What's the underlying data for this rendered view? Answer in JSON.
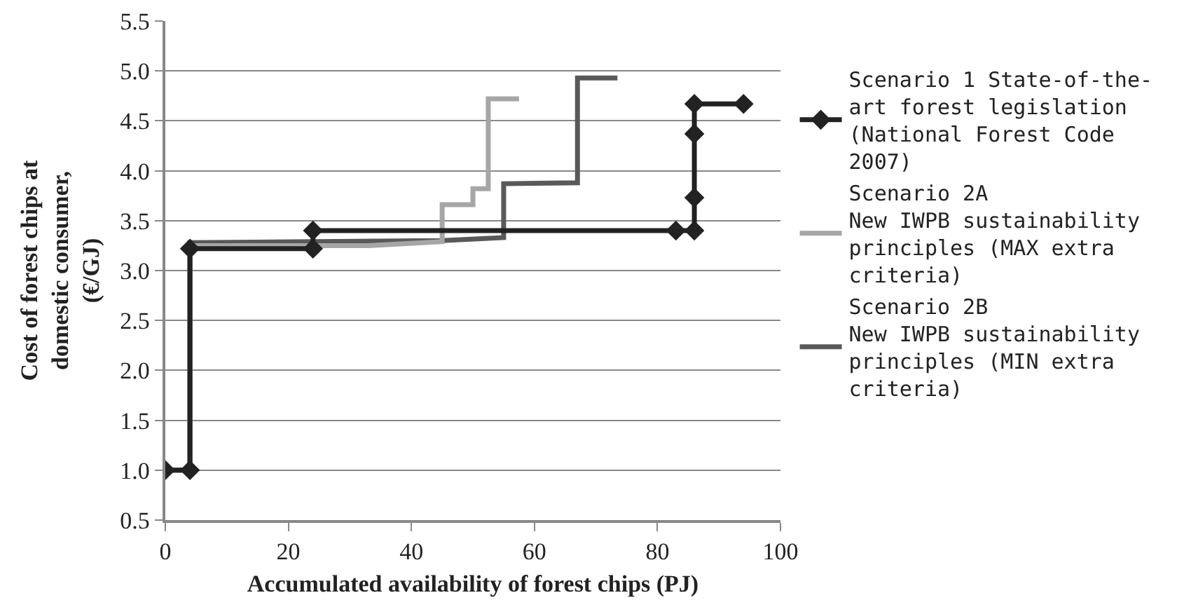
{
  "chart_data": {
    "type": "line",
    "xlabel": "Accumulated availability of forest chips (PJ)",
    "ylabel": "Cost of forest chips at domestic consumer, (€/GJ)",
    "xlim": [
      0,
      100
    ],
    "xticks": [
      0,
      20,
      40,
      60,
      80,
      100
    ],
    "ylim": [
      0.5,
      5.5
    ],
    "yticks": [
      {
        "value": 0.5,
        "label": "0.5"
      },
      {
        "value": 1,
        "label": "1.0"
      },
      {
        "value": 1.5,
        "label": "1.5"
      },
      {
        "value": 2,
        "label": "2.0"
      },
      {
        "value": 2.5,
        "label": "2.5"
      },
      {
        "value": 3,
        "label": "3.0"
      },
      {
        "value": 3.5,
        "label": "3.5"
      },
      {
        "value": 4,
        "label": "4.0"
      },
      {
        "value": 4.5,
        "label": "4.5"
      },
      {
        "value": 5,
        "label": "5.0"
      },
      {
        "value": 5.5,
        "label": "5.5"
      }
    ],
    "grid": "y",
    "legend": "right",
    "line_style": "solid",
    "series": [
      {
        "name": "Scenario 1 State-of-the-art forest legislation (National Forest Code 2007)",
        "color": "#222222",
        "marker": "diamond",
        "x": [
          0,
          4,
          4,
          24,
          24,
          83,
          86,
          86,
          86,
          86,
          94
        ],
        "values": [
          1.0,
          1.0,
          3.22,
          3.22,
          3.4,
          3.4,
          3.4,
          3.73,
          4.37,
          4.67,
          4.67
        ]
      },
      {
        "name": "Scenario 2A\nNew IWPB sustainability principles (MAX extra criteria)",
        "color": "#a6a6a6",
        "marker": "none",
        "x": [
          0,
          4,
          4,
          33,
          45,
          45,
          50,
          50,
          52.5,
          52.5,
          57.5
        ],
        "values": [
          1.0,
          1.0,
          3.25,
          3.25,
          3.29,
          3.66,
          3.66,
          3.82,
          3.82,
          4.72,
          4.72
        ]
      },
      {
        "name": "Scenario 2B\nNew IWPB sustainability principles (MIN extra criteria)",
        "color": "#595959",
        "marker": "none",
        "x": [
          0,
          4,
          4,
          45,
          55,
          55,
          67,
          67,
          73.5
        ],
        "values": [
          1.0,
          1.0,
          3.28,
          3.3,
          3.33,
          3.87,
          3.88,
          4.93,
          4.93
        ]
      }
    ]
  }
}
